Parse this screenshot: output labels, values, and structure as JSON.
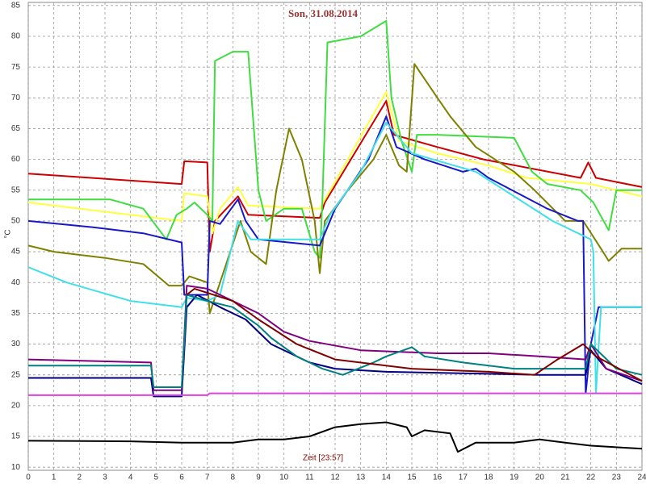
{
  "chart_data": {
    "type": "line",
    "title": "Son, 31.08.2014",
    "y_label": "°C",
    "x_label": "Zeit [23:57]",
    "xlim": [
      0,
      24
    ],
    "xticks": [
      0,
      1,
      2,
      3,
      4,
      5,
      6,
      7,
      8,
      9,
      10,
      11,
      12,
      13,
      14,
      15,
      16,
      17,
      18,
      19,
      20,
      21,
      22,
      23,
      24
    ],
    "ylim": [
      9.5,
      85.5
    ],
    "yticks": [
      10,
      15,
      20,
      25,
      30,
      35,
      40,
      45,
      50,
      55,
      60,
      65,
      70,
      75,
      80,
      85
    ],
    "grid": true,
    "series": [
      {
        "color": "#cc0000",
        "x": [
          0,
          6,
          6.1,
          7,
          7.1,
          7.3,
          8.2,
          8.6,
          11.4,
          11.6,
          14,
          14.3,
          16,
          17.8,
          21.6,
          21.9,
          22.2,
          24
        ],
        "values": [
          57.7,
          56,
          59.7,
          59.5,
          45,
          50,
          54,
          51,
          50.5,
          53,
          69.5,
          64,
          62,
          60,
          57,
          59.5,
          57,
          55.5
        ]
      },
      {
        "color": "#ffff40",
        "x": [
          0,
          6,
          6.1,
          7,
          7.2,
          7.5,
          8.2,
          8.6,
          11.4,
          14,
          14.5,
          16,
          18,
          19.5,
          22,
          24
        ],
        "values": [
          53,
          50,
          54.5,
          54,
          48,
          52,
          55.5,
          52.5,
          52,
          71,
          63,
          61,
          59,
          57,
          56,
          54
        ]
      },
      {
        "color": "#40dd40",
        "x": [
          0,
          3.2,
          4.5,
          5.4,
          5.8,
          6.2,
          6.5,
          7,
          7.2,
          7.3,
          8,
          8.6,
          9,
          9.3,
          10,
          10.7,
          11.2,
          11.4,
          11.5,
          11.7,
          13,
          14,
          14.2,
          14.6,
          15,
          15.2,
          16,
          19,
          19.7,
          20.3,
          21.6,
          22.1,
          22.7,
          23,
          24
        ],
        "values": [
          53.5,
          53.5,
          52,
          47,
          51,
          52,
          53,
          51,
          50,
          76,
          77.5,
          77.5,
          55,
          50,
          52,
          52,
          45,
          44,
          53,
          79,
          80,
          82.5,
          70,
          63,
          58,
          64,
          64,
          63.5,
          58,
          56,
          55,
          53,
          48.5,
          55,
          55
        ]
      },
      {
        "color": "#808000",
        "x": [
          0,
          1,
          3,
          4.5,
          5.5,
          6,
          6.3,
          7,
          7.1,
          7.5,
          8.3,
          8.7,
          9.3,
          9.7,
          10.2,
          10.7,
          11.2,
          11.4,
          11.6,
          12.5,
          13.5,
          14,
          14.5,
          14.8,
          15.1,
          16,
          16.5,
          17.5,
          19,
          19.8,
          21,
          21.7,
          22.4,
          22.7,
          23.2,
          24
        ],
        "values": [
          46,
          45,
          44,
          43,
          39.5,
          39.5,
          41,
          40,
          35,
          40,
          50,
          45,
          43,
          55,
          65,
          60,
          50,
          41.5,
          50,
          55,
          60,
          64,
          59,
          58,
          75.5,
          70,
          67,
          62,
          58,
          55,
          50,
          50,
          45.5,
          43.5,
          45.5,
          45.5
        ]
      },
      {
        "color": "#1818c8",
        "x": [
          0,
          2.5,
          4.5,
          6,
          6.1,
          7,
          7.1,
          7.5,
          8.2,
          8.5,
          9,
          11.4,
          12,
          13.3,
          14,
          14.4,
          15.5,
          17,
          17.5,
          18,
          20.3,
          21.5,
          21.7,
          21.8,
          22,
          22.3,
          24
        ],
        "values": [
          50,
          49,
          48,
          46.5,
          38,
          38,
          50,
          49.5,
          53.5,
          50,
          47,
          46,
          52,
          60,
          67,
          62,
          60,
          58,
          58.5,
          57,
          52,
          50,
          50,
          22,
          30,
          36,
          36
        ]
      },
      {
        "color": "#40e0e8",
        "x": [
          0,
          1.5,
          4,
          6,
          6.2,
          7,
          7.5,
          8.2,
          8.7,
          11.4,
          11.8,
          13,
          14,
          15,
          17.5,
          19,
          20.5,
          22,
          22.1,
          22.2,
          22.4,
          24
        ],
        "values": [
          42.5,
          40,
          37,
          36,
          37.5,
          37,
          38,
          50,
          47,
          47,
          51,
          58,
          66,
          61,
          58,
          54,
          50,
          47,
          45,
          22,
          36,
          36
        ]
      },
      {
        "color": "#000080",
        "x": [
          0,
          4.8,
          4.9,
          6,
          6.2,
          6.6,
          7.5,
          8.5,
          9.5,
          11,
          12,
          14,
          20,
          21.8,
          22,
          22.6,
          24
        ],
        "values": [
          24.5,
          24.5,
          21.5,
          21.5,
          36,
          38,
          36,
          34,
          30,
          27,
          26,
          25.5,
          25,
          25,
          29,
          26,
          23.5
        ]
      },
      {
        "color": "#800080",
        "x": [
          0,
          4.8,
          4.9,
          6,
          6.2,
          7,
          8,
          9,
          10,
          11,
          13,
          16,
          18,
          20,
          21.8,
          22,
          22.6,
          24
        ],
        "values": [
          27.5,
          27,
          22.5,
          22.5,
          39.5,
          39,
          37,
          35,
          32,
          30.5,
          29,
          28.5,
          28.5,
          28,
          27.5,
          30,
          26,
          24
        ]
      },
      {
        "color": "#008080",
        "x": [
          0,
          4.8,
          4.9,
          6,
          6.2,
          7,
          8,
          9,
          9.5,
          10.5,
          11.5,
          12.3,
          13.5,
          14,
          15,
          15.5,
          17,
          19,
          20,
          21.8,
          22,
          23,
          24
        ],
        "values": [
          26.5,
          26.5,
          23,
          23,
          38,
          37,
          36,
          33,
          31,
          28,
          26,
          25,
          27,
          28,
          29.5,
          28,
          27,
          26,
          26,
          26,
          30,
          26,
          25
        ]
      },
      {
        "color": "#800000",
        "x": [
          6.2,
          6.5,
          8,
          9,
          10.5,
          12,
          15,
          18,
          19.8,
          20.7,
          21.7,
          22.2,
          24
        ],
        "values": [
          38,
          39,
          37,
          34,
          30,
          27.5,
          26,
          25.5,
          25,
          27.5,
          30,
          28,
          24
        ]
      },
      {
        "color": "#e040e0",
        "x": [
          0,
          7,
          7.1,
          24
        ],
        "values": [
          21.7,
          21.7,
          22,
          22
        ]
      },
      {
        "color": "#000000",
        "x": [
          0,
          4,
          6,
          8,
          9,
          10,
          11,
          12,
          13,
          14,
          14.8,
          15,
          15.5,
          16.5,
          16.8,
          17.5,
          19,
          20,
          21,
          22,
          24
        ],
        "values": [
          14.3,
          14.2,
          14,
          14,
          14.5,
          14.5,
          15,
          16.5,
          17,
          17.3,
          16.5,
          15,
          16,
          15.5,
          12.5,
          14,
          14,
          14.5,
          14,
          13.5,
          13
        ]
      }
    ]
  }
}
